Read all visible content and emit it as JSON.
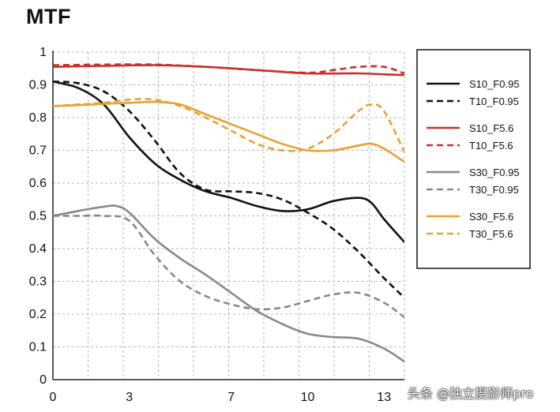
{
  "chart_data": {
    "type": "line",
    "title": "MTF",
    "xlabel": "",
    "ylabel": "",
    "xlim": [
      0,
      13.8
    ],
    "ylim": [
      0,
      1
    ],
    "x_ticks": [
      0,
      3,
      7,
      10,
      13
    ],
    "y_ticks": [
      0,
      0.1,
      0.2,
      0.3,
      0.4,
      0.5,
      0.6,
      0.7,
      0.8,
      0.9,
      1
    ],
    "y_tick_labels": [
      "0",
      "0.1",
      "0.2",
      "0.3",
      "0.4",
      "0.5",
      "0.6",
      "0.7",
      "0.8",
      "0.9",
      "1"
    ],
    "x_gridlines": [
      0,
      1.38,
      2.76,
      4.14,
      5.52,
      6.9,
      8.28,
      9.66,
      11.04,
      12.42,
      13.8
    ],
    "grid": true,
    "legend_position": "right",
    "series": [
      {
        "name": "S10_F0.95",
        "color": "#111111",
        "dash": "solid",
        "x": [
          0,
          1,
          2,
          3,
          4,
          5,
          6,
          7,
          8,
          9,
          10,
          11,
          12,
          12.5,
          13,
          13.8
        ],
        "y": [
          0.91,
          0.89,
          0.84,
          0.74,
          0.66,
          0.61,
          0.575,
          0.555,
          0.53,
          0.515,
          0.52,
          0.545,
          0.555,
          0.54,
          0.49,
          0.42
        ]
      },
      {
        "name": "T10_F0.95",
        "color": "#111111",
        "dash": "dashed",
        "x": [
          0,
          1,
          2,
          3,
          4,
          5,
          6,
          7,
          8,
          9,
          10,
          11,
          12,
          13,
          13.8
        ],
        "y": [
          0.91,
          0.905,
          0.88,
          0.82,
          0.73,
          0.63,
          0.58,
          0.575,
          0.57,
          0.55,
          0.51,
          0.46,
          0.39,
          0.31,
          0.25
        ]
      },
      {
        "name": "S10_F5.6",
        "color": "#c9302c",
        "dash": "solid",
        "x": [
          0,
          2,
          4,
          6,
          8,
          10,
          12,
          13,
          13.8
        ],
        "y": [
          0.955,
          0.958,
          0.96,
          0.955,
          0.945,
          0.935,
          0.935,
          0.932,
          0.93
        ]
      },
      {
        "name": "T10_F5.6",
        "color": "#c9302c",
        "dash": "dashed",
        "x": [
          0,
          2,
          4,
          6,
          8,
          10,
          11,
          12,
          13,
          13.8
        ],
        "y": [
          0.96,
          0.962,
          0.962,
          0.955,
          0.945,
          0.937,
          0.945,
          0.955,
          0.955,
          0.935
        ]
      },
      {
        "name": "S30_F0.95",
        "color": "#888888",
        "dash": "solid",
        "x": [
          0,
          1,
          2,
          2.5,
          3,
          4,
          5,
          6,
          7,
          8,
          9,
          10,
          11,
          12,
          13,
          13.8
        ],
        "y": [
          0.5,
          0.515,
          0.528,
          0.53,
          0.51,
          0.43,
          0.37,
          0.32,
          0.265,
          0.21,
          0.17,
          0.14,
          0.13,
          0.125,
          0.095,
          0.055
        ]
      },
      {
        "name": "T30_F0.95",
        "color": "#888888",
        "dash": "dashed",
        "x": [
          0,
          1,
          2,
          3,
          4,
          5,
          6,
          7,
          8,
          9,
          10,
          11,
          12,
          13,
          13.8
        ],
        "y": [
          0.5,
          0.5,
          0.5,
          0.485,
          0.38,
          0.3,
          0.255,
          0.23,
          0.215,
          0.22,
          0.24,
          0.26,
          0.265,
          0.235,
          0.19
        ]
      },
      {
        "name": "S30_F5.6",
        "color": "#e8a032",
        "dash": "solid",
        "x": [
          0,
          1,
          2,
          3,
          4,
          5,
          6,
          7,
          8,
          9,
          10,
          11,
          12,
          12.5,
          13,
          13.8
        ],
        "y": [
          0.835,
          0.838,
          0.842,
          0.845,
          0.848,
          0.84,
          0.81,
          0.78,
          0.75,
          0.72,
          0.7,
          0.7,
          0.715,
          0.72,
          0.705,
          0.665
        ]
      },
      {
        "name": "T30_F5.6",
        "color": "#e8a032",
        "dash": "dashed",
        "x": [
          0,
          1,
          2,
          3,
          4,
          5,
          6,
          7,
          8,
          9,
          10,
          11,
          12,
          12.5,
          13,
          13.8
        ],
        "y": [
          0.835,
          0.84,
          0.845,
          0.855,
          0.855,
          0.835,
          0.8,
          0.76,
          0.72,
          0.7,
          0.705,
          0.75,
          0.82,
          0.84,
          0.82,
          0.695
        ]
      }
    ]
  },
  "watermark": "头条 @独立摄影师pro"
}
